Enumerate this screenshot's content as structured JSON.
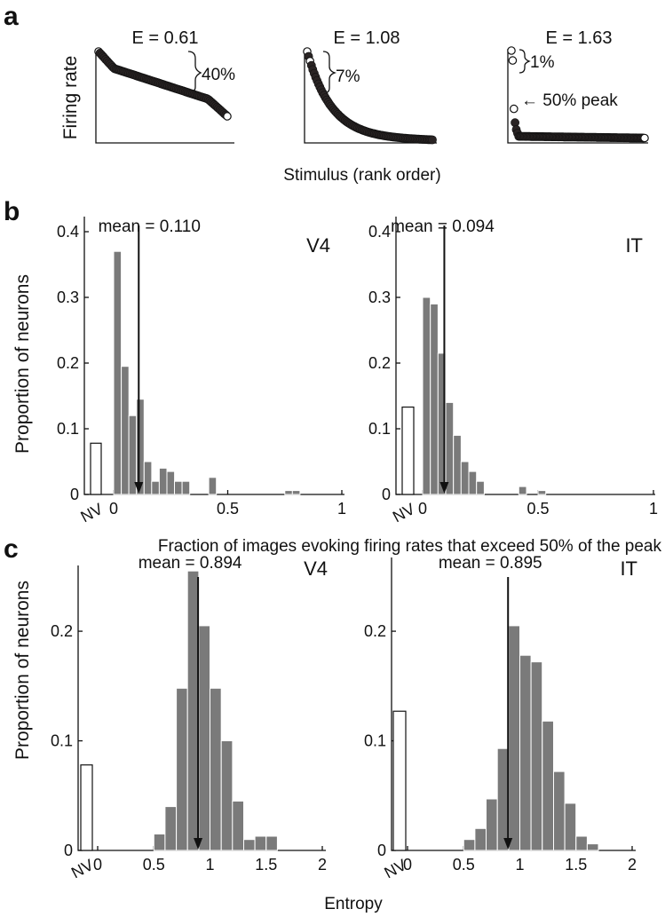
{
  "panel_letters": {
    "a": "a",
    "b": "b",
    "c": "c"
  },
  "panel_a": {
    "ylabel": "Firing rate",
    "xlabel": "Stimulus (rank order)",
    "examples": [
      {
        "title": "E = 0.61",
        "annotations": [
          "40%"
        ]
      },
      {
        "title": "E = 1.08",
        "annotations": [
          "7%"
        ]
      },
      {
        "title": "E = 1.63",
        "annotations": [
          "1%",
          "← 50% peak"
        ]
      }
    ]
  },
  "panel_b": {
    "ylabel": "Proportion of neurons",
    "xlabel": "Fraction of images evoking firing rates that exceed 50% of the peak"
  },
  "panel_c": {
    "ylabel": "Proportion of neurons",
    "xlabel": "Entropy"
  },
  "chart_data": [
    {
      "type": "line",
      "panel": "a",
      "title": "E = 0.61",
      "xlabel": "Stimulus (rank order)",
      "ylabel": "Firing rate",
      "selectivity_entropy": 0.61,
      "fraction_above_half_peak": 0.4
    },
    {
      "type": "line",
      "panel": "a",
      "title": "E = 1.08",
      "xlabel": "Stimulus (rank order)",
      "ylabel": "Firing rate",
      "selectivity_entropy": 1.08,
      "fraction_above_half_peak": 0.07
    },
    {
      "type": "line",
      "panel": "a",
      "title": "E = 1.63",
      "xlabel": "Stimulus (rank order)",
      "ylabel": "Firing rate",
      "selectivity_entropy": 1.63,
      "fraction_above_half_peak": 0.01,
      "annotation": "50% peak"
    },
    {
      "type": "bar",
      "panel": "b",
      "region": "V4",
      "mean_label": "mean = 0.110",
      "mean": 0.11,
      "bin_width": 0.0333,
      "bin_starts": [
        0,
        0.0333,
        0.0667,
        0.1,
        0.1333,
        0.1667,
        0.2,
        0.2333,
        0.2667,
        0.3,
        0.3333,
        0.4167,
        0.75,
        0.7833
      ],
      "values": [
        0.37,
        0.195,
        0.12,
        0.145,
        0.05,
        0.02,
        0.04,
        0.035,
        0.02,
        0.02,
        0.0,
        0.026,
        0.006,
        0.006
      ],
      "nv_value": 0.078,
      "xlim": [
        0,
        1
      ],
      "ylim": [
        0,
        0.4
      ],
      "xticks": [
        "0",
        "0.5",
        "1"
      ],
      "yticks": [
        "0",
        "0.1",
        "0.2",
        "0.3",
        "0.4"
      ],
      "nv_label": "NV",
      "xlabel": "Fraction of images evoking firing rates that exceed 50% of the peak",
      "ylabel": "Proportion of neurons"
    },
    {
      "type": "bar",
      "panel": "b",
      "region": "IT",
      "mean_label": "mean = 0.094",
      "mean": 0.094,
      "bin_width": 0.0333,
      "bin_starts": [
        0,
        0.0333,
        0.0667,
        0.1,
        0.1333,
        0.1667,
        0.2,
        0.2333,
        0.2667,
        0.4167,
        0.5
      ],
      "values": [
        0.3,
        0.29,
        0.215,
        0.14,
        0.09,
        0.05,
        0.035,
        0.02,
        0.0,
        0.012,
        0.006
      ],
      "nv_value": 0.133,
      "xlim": [
        0,
        1
      ],
      "ylim": [
        0,
        0.4
      ],
      "xticks": [
        "0",
        "0.5",
        "1"
      ],
      "yticks": [
        "0",
        "0.1",
        "0.2",
        "0.3",
        "0.4"
      ],
      "nv_label": "NV",
      "xlabel": "Fraction of images evoking firing rates that exceed 50% of the peak",
      "ylabel": "Proportion of neurons"
    },
    {
      "type": "bar",
      "panel": "c",
      "region": "V4",
      "mean_label": "mean = 0.894",
      "mean": 0.894,
      "bin_width": 0.1,
      "bin_starts": [
        0.5,
        0.6,
        0.7,
        0.8,
        0.9,
        1.0,
        1.1,
        1.2,
        1.3,
        1.4,
        1.5
      ],
      "values": [
        0.015,
        0.04,
        0.148,
        0.255,
        0.205,
        0.148,
        0.1,
        0.045,
        0.01,
        0.013,
        0.013
      ],
      "nv_value": 0.078,
      "xlim": [
        0,
        2
      ],
      "ylim": [
        0,
        0.26
      ],
      "xticks": [
        "0",
        "0.5",
        "1",
        "1.5",
        "2"
      ],
      "yticks": [
        "0",
        "0.1",
        "0.2"
      ],
      "nv_label": "NV",
      "xlabel": "Entropy",
      "ylabel": "Proportion of neurons"
    },
    {
      "type": "bar",
      "panel": "c",
      "region": "IT",
      "mean_label": "mean = 0.895",
      "mean": 0.895,
      "bin_width": 0.1,
      "bin_starts": [
        0.5,
        0.6,
        0.7,
        0.8,
        0.9,
        1.0,
        1.1,
        1.2,
        1.3,
        1.4,
        1.5,
        1.6
      ],
      "values": [
        0.01,
        0.02,
        0.047,
        0.093,
        0.205,
        0.178,
        0.172,
        0.118,
        0.072,
        0.043,
        0.013,
        0.006
      ],
      "nv_value": 0.127,
      "xlim": [
        0,
        2
      ],
      "ylim": [
        0,
        0.26
      ],
      "xticks": [
        "0",
        "0.5",
        "1",
        "1.5",
        "2"
      ],
      "yticks": [
        "0",
        "0.1",
        "0.2"
      ],
      "nv_label": "NV",
      "xlabel": "Entropy",
      "ylabel": "Proportion of neurons"
    }
  ]
}
